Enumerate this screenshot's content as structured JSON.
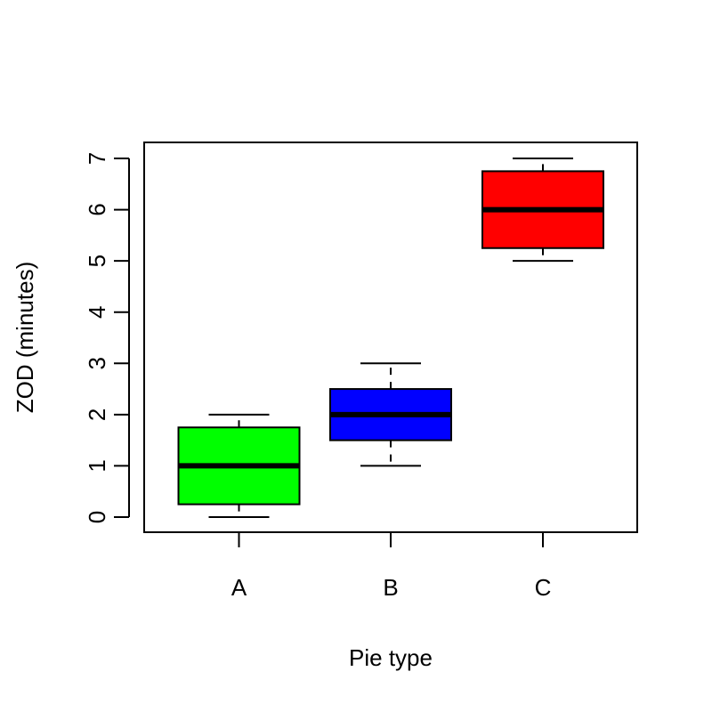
{
  "chart_data": {
    "type": "boxplot",
    "title": "",
    "xlabel": "Pie type",
    "ylabel": "ZOD (minutes)",
    "ylim": [
      0,
      7
    ],
    "y_ticks": [
      0,
      1,
      2,
      3,
      4,
      5,
      6,
      7
    ],
    "y_tick_labels": [
      "0",
      "1",
      "2",
      "3",
      "4",
      "5",
      "6",
      "7"
    ],
    "categories": [
      "A",
      "B",
      "C"
    ],
    "boxes": [
      {
        "category": "A",
        "min": 0,
        "q1": 0.25,
        "median": 1,
        "q3": 1.75,
        "max": 2,
        "color": "#00ff00"
      },
      {
        "category": "B",
        "min": 1,
        "q1": 1.5,
        "median": 2,
        "q3": 2.5,
        "max": 3,
        "color": "#0000ff"
      },
      {
        "category": "C",
        "min": 5,
        "q1": 5.25,
        "median": 6,
        "q3": 6.75,
        "max": 7,
        "color": "#ff0000"
      }
    ],
    "grid": false,
    "legend": "none"
  }
}
